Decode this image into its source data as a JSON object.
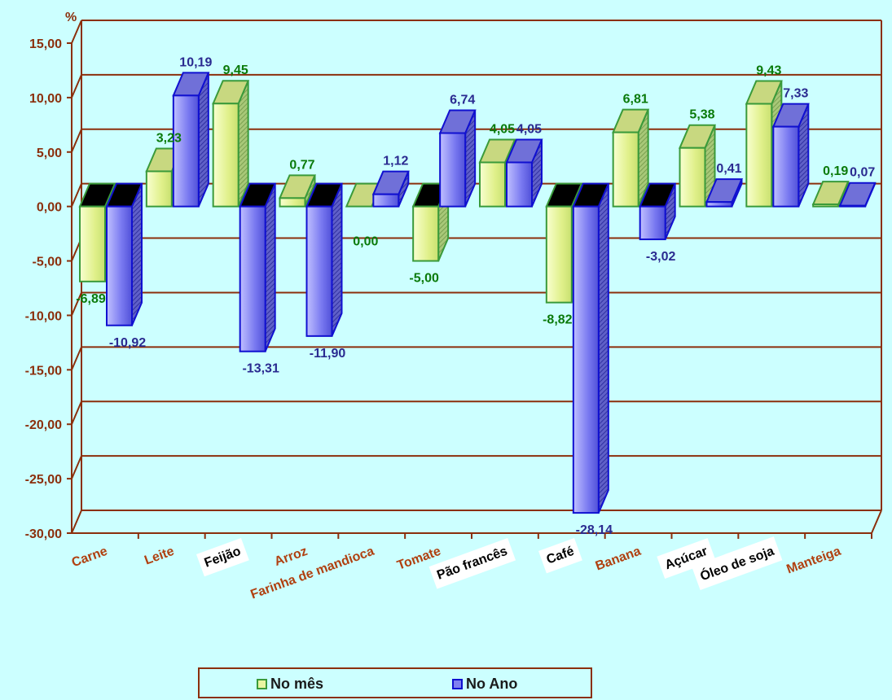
{
  "chart_data": {
    "type": "bar",
    "ylabel": "%",
    "ylim": [
      -30,
      15
    ],
    "yticks": [
      "15,00",
      "10,00",
      "5,00",
      "0,00",
      "-5,00",
      "-10,00",
      "-15,00",
      "-20,00",
      "-25,00",
      "-30,00"
    ],
    "categories": [
      "Carne",
      "Leite",
      "Feijão",
      "Arroz",
      "Farinha de mandioca",
      "Tomate",
      "Pão francês",
      "Café",
      "Banana",
      "Açúcar",
      "Óleo de soja",
      "Manteiga"
    ],
    "highlighted_categories": [
      "Feijão",
      "Pão francês",
      "Café",
      "Açúcar",
      "Óleo de soja"
    ],
    "series": [
      {
        "name": "No mês",
        "values": [
          -6.89,
          3.23,
          9.45,
          0.77,
          0.0,
          -5.0,
          4.05,
          -8.82,
          6.81,
          5.38,
          9.43,
          0.19
        ],
        "labels": [
          "-6,89",
          "3,23",
          "9,45",
          "0,77",
          "0,00",
          "-5,00",
          "4,05",
          "-8,82",
          "6,81",
          "5,38",
          "9,43",
          "0,19"
        ],
        "color": "#e8f5a0",
        "edge": "#3a9a3a",
        "label_color": "#0a7a0a"
      },
      {
        "name": "No Ano",
        "values": [
          -10.92,
          10.19,
          -13.31,
          -11.9,
          1.12,
          6.74,
          4.05,
          -28.14,
          -3.02,
          0.41,
          7.33,
          0.07
        ],
        "labels": [
          "-10,92",
          "10,19",
          "-13,31",
          "-11,90",
          "1,12",
          "6,74",
          "4,05",
          "-28,14",
          "-3,02",
          "0,41",
          "7,33",
          "0,07"
        ],
        "color": "#8080f0",
        "edge": "#1010d0",
        "label_color": "#2a2a90"
      }
    ],
    "grid": true,
    "legend_position": "bottom",
    "colors": {
      "axis": "#8b2f0c",
      "background": "#ccffff",
      "category_text": "#b04010"
    }
  }
}
